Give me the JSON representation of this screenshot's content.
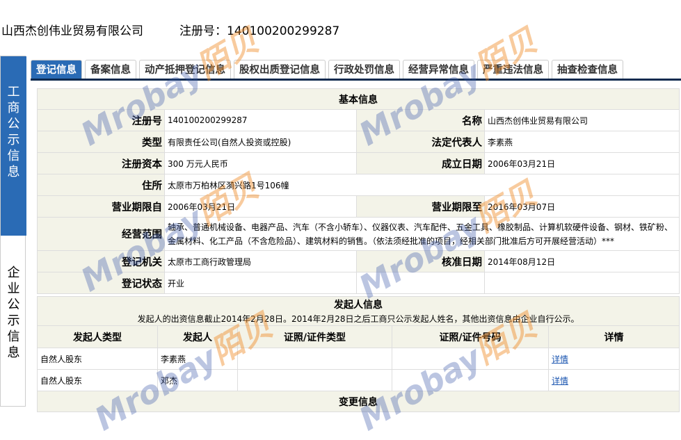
{
  "header": {
    "company": "山西杰创伟业贸易有限公司",
    "reg_label": "注册号：140100200299287"
  },
  "sidebar": {
    "active": "工商公示信息",
    "other": "企业公示信息"
  },
  "tabs": [
    "登记信息",
    "备案信息",
    "动产抵押登记信息",
    "股权出质登记信息",
    "行政处罚信息",
    "经营异常信息",
    "严重违法信息",
    "抽查检查信息"
  ],
  "basic": {
    "title": "基本信息",
    "rows": [
      {
        "l1": "注册号",
        "v1": "140100200299287",
        "l2": "名称",
        "v2": "山西杰创伟业贸易有限公司"
      },
      {
        "l1": "类型",
        "v1": "有限责任公司(自然人投资或控股)",
        "l2": "法定代表人",
        "v2": "李素燕"
      },
      {
        "l1": "注册资本",
        "v1": "300 万元人民币",
        "l2": "成立日期",
        "v2": "2006年03月21日"
      },
      {
        "l1": "住所",
        "v1": "太原市万柏林区漪兴路1号106幢"
      },
      {
        "l1": "营业期限自",
        "v1": "2006年03月21日",
        "l2": "营业期限至",
        "v2": "2016年03月07日"
      },
      {
        "l1": "经营范围",
        "v1": "轴承、普通机械设备、电器产品、汽车（不含小轿车）、仪器仪表、汽车配件、五金工具、橡胶制品、计算机软硬件设备、钢材、铁矿粉、金属材料、化工产品（不含危险品）、建筑材料的销售。（依法须经批准的项目，经相关部门批准后方可开展经营活动）***"
      },
      {
        "l1": "登记机关",
        "v1": "太原市工商行政管理局",
        "l2": "核准日期",
        "v2": "2014年08月12日"
      },
      {
        "l1": "登记状态",
        "v1": "开业"
      }
    ]
  },
  "founders": {
    "title": "发起人信息",
    "note": "发起人的出资信息截止2014年2月28日。2014年2月28日之后工商只公示发起人姓名，其他出资信息由企业自行公示。",
    "columns": [
      "发起人类型",
      "发起人",
      "证照/证件类型",
      "证照/证件号码",
      "详情"
    ],
    "rows": [
      {
        "type": "自然人股东",
        "name": "李素燕",
        "id_type": "",
        "id_no": "",
        "detail": "详情"
      },
      {
        "type": "自然人股东",
        "name": "邓杰",
        "id_type": "",
        "id_no": "",
        "detail": "详情"
      }
    ]
  },
  "changes": {
    "title": "变更信息"
  },
  "watermark": {
    "text": "Mrobay",
    "cn": "陌贝"
  }
}
